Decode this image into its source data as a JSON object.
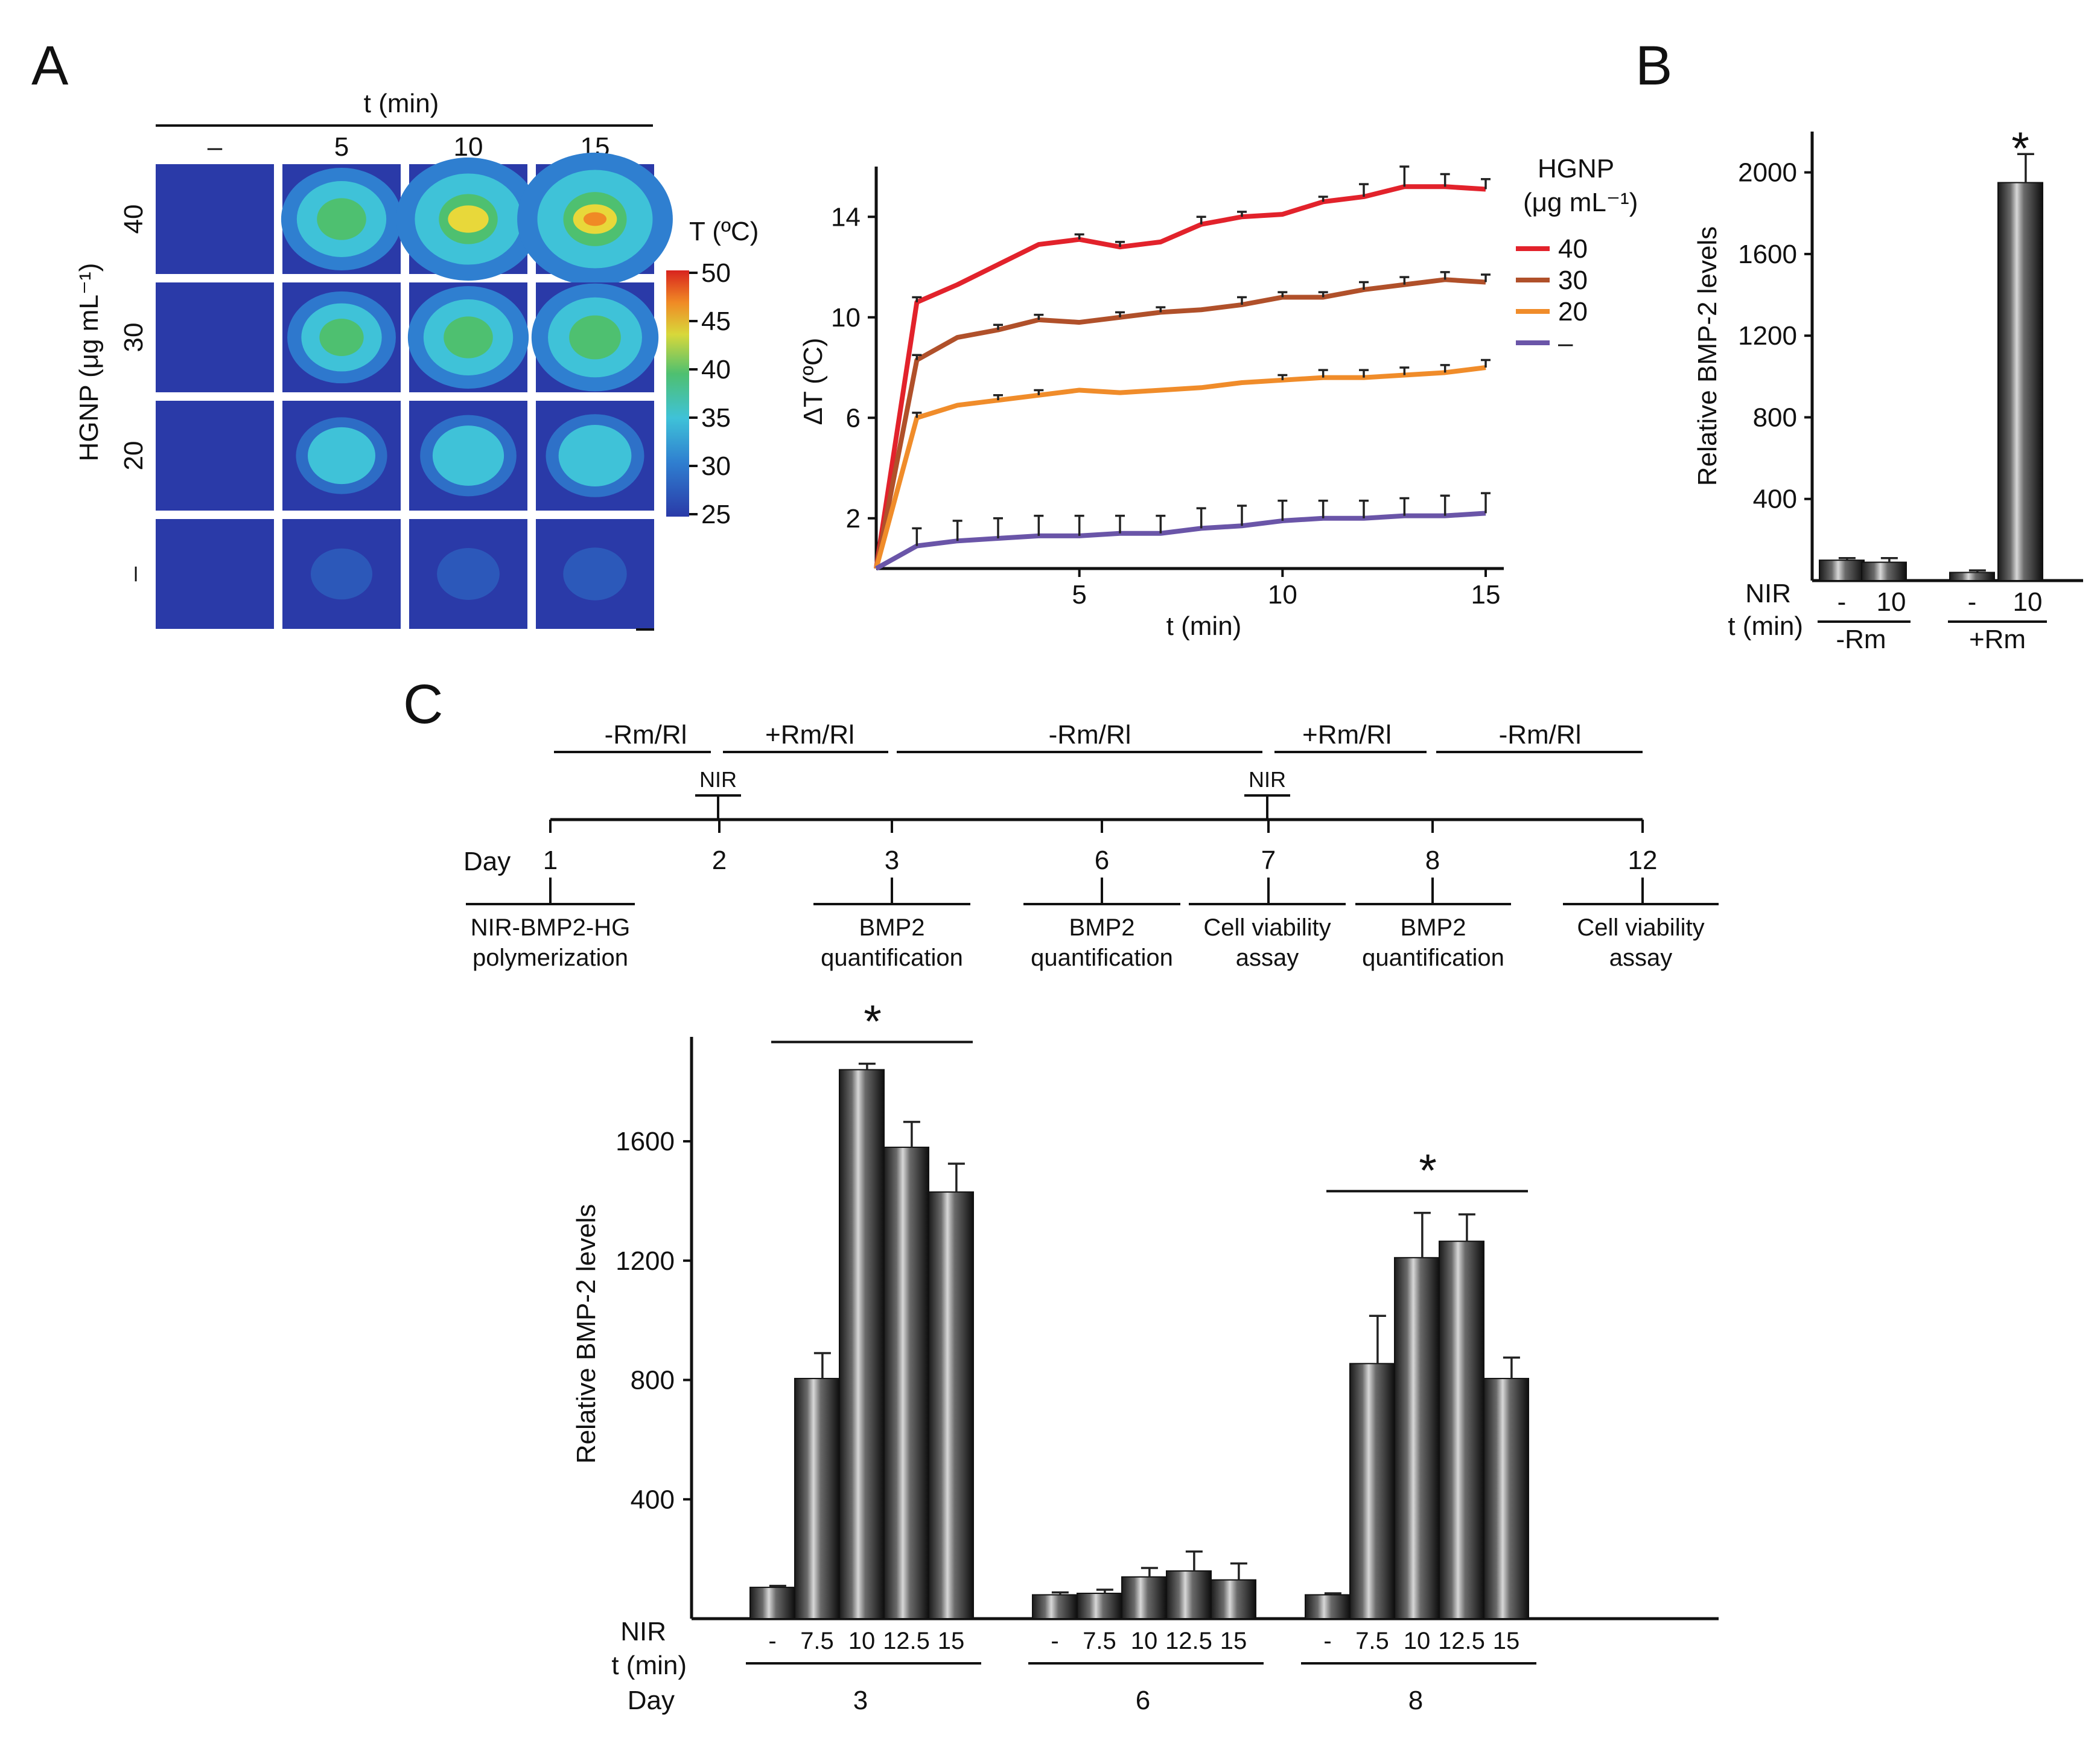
{
  "panels": {
    "a": "A",
    "b": "B",
    "c": "C"
  },
  "heatmap": {
    "time_header": "t (min)",
    "columns": [
      "–",
      "5",
      "10",
      "15"
    ],
    "row_axis_label": "HGNP (μg mL⁻¹)",
    "rows": [
      "40",
      "30",
      "20",
      "–"
    ],
    "intensity": [
      [
        0,
        0.62,
        0.85,
        0.96
      ],
      [
        0,
        0.5,
        0.62,
        0.68
      ],
      [
        0,
        0.33,
        0.38,
        0.4
      ],
      [
        0,
        0.04,
        0.05,
        0.06
      ]
    ],
    "colorbar_title": "T (ºC)",
    "colorbar_ticks": [
      "50",
      "45",
      "40",
      "35",
      "30",
      "25"
    ]
  },
  "chart_data": [
    {
      "id": "A-line",
      "type": "line",
      "title": "",
      "xlabel": "t (min)",
      "ylabel": "ΔT (ºC)",
      "xlim": [
        0,
        15
      ],
      "ylim": [
        0,
        16
      ],
      "xticks": [
        "5",
        "10",
        "15"
      ],
      "yticks": [
        "2",
        "6",
        "10",
        "14"
      ],
      "legend_title": "HGNP",
      "legend_units": "(μg mL⁻¹)",
      "x": [
        0,
        1,
        2,
        3,
        4,
        5,
        6,
        7,
        8,
        9,
        10,
        11,
        12,
        13,
        14,
        15
      ],
      "series": [
        {
          "name": "40",
          "color": "#e2222b",
          "values": [
            0,
            10.6,
            11.3,
            12.1,
            12.9,
            13.1,
            12.8,
            13.0,
            13.7,
            14.0,
            14.1,
            14.6,
            14.8,
            15.2,
            15.2,
            15.1
          ],
          "errors": [
            0,
            0.2,
            0,
            0,
            0,
            0.2,
            0.2,
            0,
            0.3,
            0.2,
            0,
            0.2,
            0.5,
            0.8,
            0.5,
            0.4
          ]
        },
        {
          "name": "30",
          "color": "#b0502a",
          "values": [
            0,
            8.3,
            9.2,
            9.5,
            9.9,
            9.8,
            10.0,
            10.2,
            10.3,
            10.5,
            10.8,
            10.8,
            11.1,
            11.3,
            11.5,
            11.4
          ],
          "errors": [
            0,
            0.2,
            0,
            0.2,
            0.2,
            0,
            0.2,
            0.2,
            0,
            0.3,
            0.2,
            0.2,
            0.3,
            0.3,
            0.3,
            0.3
          ]
        },
        {
          "name": "20",
          "color": "#f08c2a",
          "values": [
            0,
            6.0,
            6.5,
            6.7,
            6.9,
            7.1,
            7.0,
            7.1,
            7.2,
            7.4,
            7.5,
            7.6,
            7.6,
            7.7,
            7.8,
            8.0
          ],
          "errors": [
            0,
            0.2,
            0,
            0.2,
            0.2,
            0,
            0,
            0,
            0,
            0,
            0.2,
            0.3,
            0.3,
            0.3,
            0.3,
            0.3
          ]
        },
        {
          "name": "–",
          "color": "#6a55a8",
          "values": [
            0,
            0.9,
            1.1,
            1.2,
            1.3,
            1.3,
            1.4,
            1.4,
            1.6,
            1.7,
            1.9,
            2.0,
            2.0,
            2.1,
            2.1,
            2.2
          ],
          "errors": [
            0,
            0.7,
            0.8,
            0.8,
            0.8,
            0.8,
            0.7,
            0.7,
            0.8,
            0.8,
            0.8,
            0.7,
            0.7,
            0.7,
            0.8,
            0.8
          ]
        }
      ]
    },
    {
      "id": "B-bar",
      "type": "bar",
      "title": "",
      "ylabel": "Relative BMP-2  levels",
      "ylim": [
        0,
        2200
      ],
      "yticks": [
        "400",
        "800",
        "1200",
        "1600",
        "2000"
      ],
      "row_labels": [
        "NIR",
        "t (min)"
      ],
      "categories": [
        "-",
        "10",
        "-",
        "10"
      ],
      "groups": [
        "-Rm",
        "+Rm"
      ],
      "values": [
        100,
        90,
        40,
        1950
      ],
      "errors": [
        10,
        20,
        10,
        140
      ],
      "significance": "*"
    },
    {
      "id": "C-bar",
      "type": "bar",
      "title": "",
      "ylabel": "Relative BMP-2  levels",
      "ylim": [
        0,
        1950
      ],
      "yticks": [
        "400",
        "800",
        "1200",
        "1600"
      ],
      "row_labels": [
        "NIR",
        "t (min)",
        "Day"
      ],
      "categories": [
        "-",
        "7.5",
        "10",
        "12.5",
        "15"
      ],
      "groups": [
        {
          "day": "3",
          "values": [
            105,
            805,
            1840,
            1580,
            1430
          ],
          "errors": [
            5,
            85,
            20,
            85,
            95
          ],
          "significance": "*"
        },
        {
          "day": "6",
          "values": [
            80,
            85,
            140,
            160,
            130
          ],
          "errors": [
            8,
            12,
            30,
            65,
            55
          ],
          "significance": ""
        },
        {
          "day": "8",
          "values": [
            80,
            855,
            1210,
            1265,
            805
          ],
          "errors": [
            5,
            160,
            150,
            90,
            70
          ],
          "significance": "*"
        }
      ]
    }
  ],
  "timeline": {
    "treatments": [
      "-Rm/Rl",
      "+Rm/Rl",
      "-Rm/Rl",
      "+Rm/Rl",
      "-Rm/Rl"
    ],
    "nir_marks": [
      "NIR",
      "NIR"
    ],
    "day_label": "Day",
    "days": [
      "1",
      "2",
      "3",
      "6",
      "7",
      "8",
      "12"
    ],
    "events": [
      {
        "line1": "NIR-BMP2-HG",
        "line2": "polymerization"
      },
      {
        "line1": "BMP2",
        "line2": "quantification"
      },
      {
        "line1": "BMP2",
        "line2": "quantification"
      },
      {
        "line1": "Cell viability",
        "line2": "assay"
      },
      {
        "line1": "BMP2",
        "line2": "quantification"
      },
      {
        "line1": "Cell viability",
        "line2": "assay"
      }
    ]
  }
}
